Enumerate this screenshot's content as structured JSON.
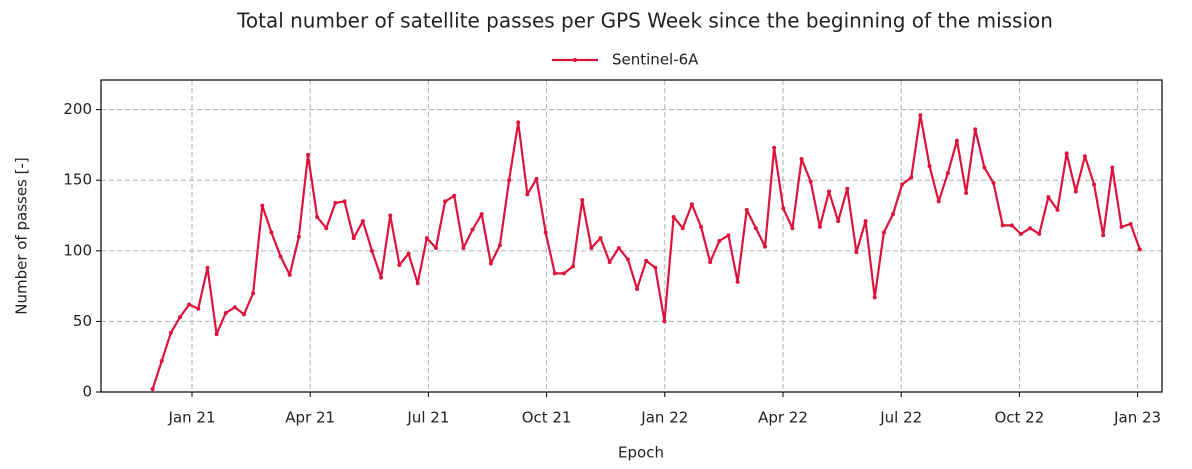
{
  "chart_data": {
    "type": "line",
    "title": "Total number of satellite passes per GPS Week since the beginning of the mission",
    "x_label": "Epoch",
    "y_label": "Number of passes [-]",
    "xlim": [
      -2.31,
      24.62
    ],
    "ylim": [
      0,
      221
    ],
    "xticks": [
      {
        "value": 0,
        "label": "Jan 21"
      },
      {
        "value": 3,
        "label": "Apr 21"
      },
      {
        "value": 6,
        "label": "Jul 21"
      },
      {
        "value": 9,
        "label": "Oct 21"
      },
      {
        "value": 12,
        "label": "Jan 22"
      },
      {
        "value": 15,
        "label": "Apr 22"
      },
      {
        "value": 18,
        "label": "Jul 22"
      },
      {
        "value": 21,
        "label": "Oct 22"
      },
      {
        "value": 24,
        "label": "Jan 23"
      }
    ],
    "yticks": [
      0,
      50,
      100,
      150,
      200
    ],
    "grid": true,
    "legend": "top",
    "x": [
      -1.0,
      -0.768,
      -0.536,
      -0.304,
      -0.072,
      0.16,
      0.392,
      0.624,
      0.856,
      1.088,
      1.32,
      1.552,
      1.784,
      2.016,
      2.248,
      2.48,
      2.712,
      2.944,
      3.176,
      3.408,
      3.64,
      3.872,
      4.104,
      4.336,
      4.568,
      4.8,
      5.032,
      5.264,
      5.496,
      5.728,
      5.96,
      6.192,
      6.424,
      6.656,
      6.888,
      7.12,
      7.352,
      7.584,
      7.816,
      8.048,
      8.28,
      8.512,
      8.744,
      8.976,
      9.208,
      9.44,
      9.672,
      9.904,
      10.136,
      10.368,
      10.6,
      10.832,
      11.064,
      11.296,
      11.528,
      11.76,
      11.992,
      12.224,
      12.456,
      12.688,
      12.92,
      13.152,
      13.384,
      13.616,
      13.848,
      14.08,
      14.312,
      14.544,
      14.776,
      15.008,
      15.24,
      15.472,
      15.704,
      15.936,
      16.168,
      16.4,
      16.632,
      16.864,
      17.096,
      17.328,
      17.56,
      17.792,
      18.024,
      18.256,
      18.488,
      18.72,
      18.952,
      19.184,
      19.416,
      19.648,
      19.88,
      20.112,
      20.344,
      20.576,
      20.808,
      21.04,
      21.272,
      21.504,
      21.736,
      21.968,
      22.2,
      22.432,
      22.664,
      22.896,
      23.128,
      23.36,
      23.592,
      23.824,
      24.056
    ],
    "series": [
      {
        "name": "Sentinel-6A",
        "color": "#dc143c",
        "values": [
          2,
          22,
          42,
          53,
          62,
          59,
          88,
          41,
          56,
          60,
          55,
          70,
          132,
          113,
          96,
          83,
          110,
          168,
          124,
          116,
          134,
          135,
          109,
          121,
          100,
          81,
          125,
          90,
          98,
          77,
          109,
          102,
          135,
          139,
          102,
          115,
          126,
          91,
          104,
          150,
          191,
          140,
          151,
          113,
          84,
          84,
          89,
          136,
          102,
          109,
          92,
          102,
          94,
          73,
          93,
          88,
          50,
          124,
          116,
          133,
          117,
          92,
          107,
          111,
          78,
          129,
          116,
          103,
          173,
          130,
          116,
          165,
          149,
          117,
          142,
          121,
          144,
          99,
          121,
          67,
          113,
          126,
          147,
          152,
          196,
          160,
          135,
          155,
          178,
          141,
          186,
          159,
          148,
          118,
          118,
          112,
          116,
          112,
          138,
          129,
          169,
          142,
          167,
          147,
          111,
          159,
          117,
          119,
          101
        ]
      }
    ]
  }
}
